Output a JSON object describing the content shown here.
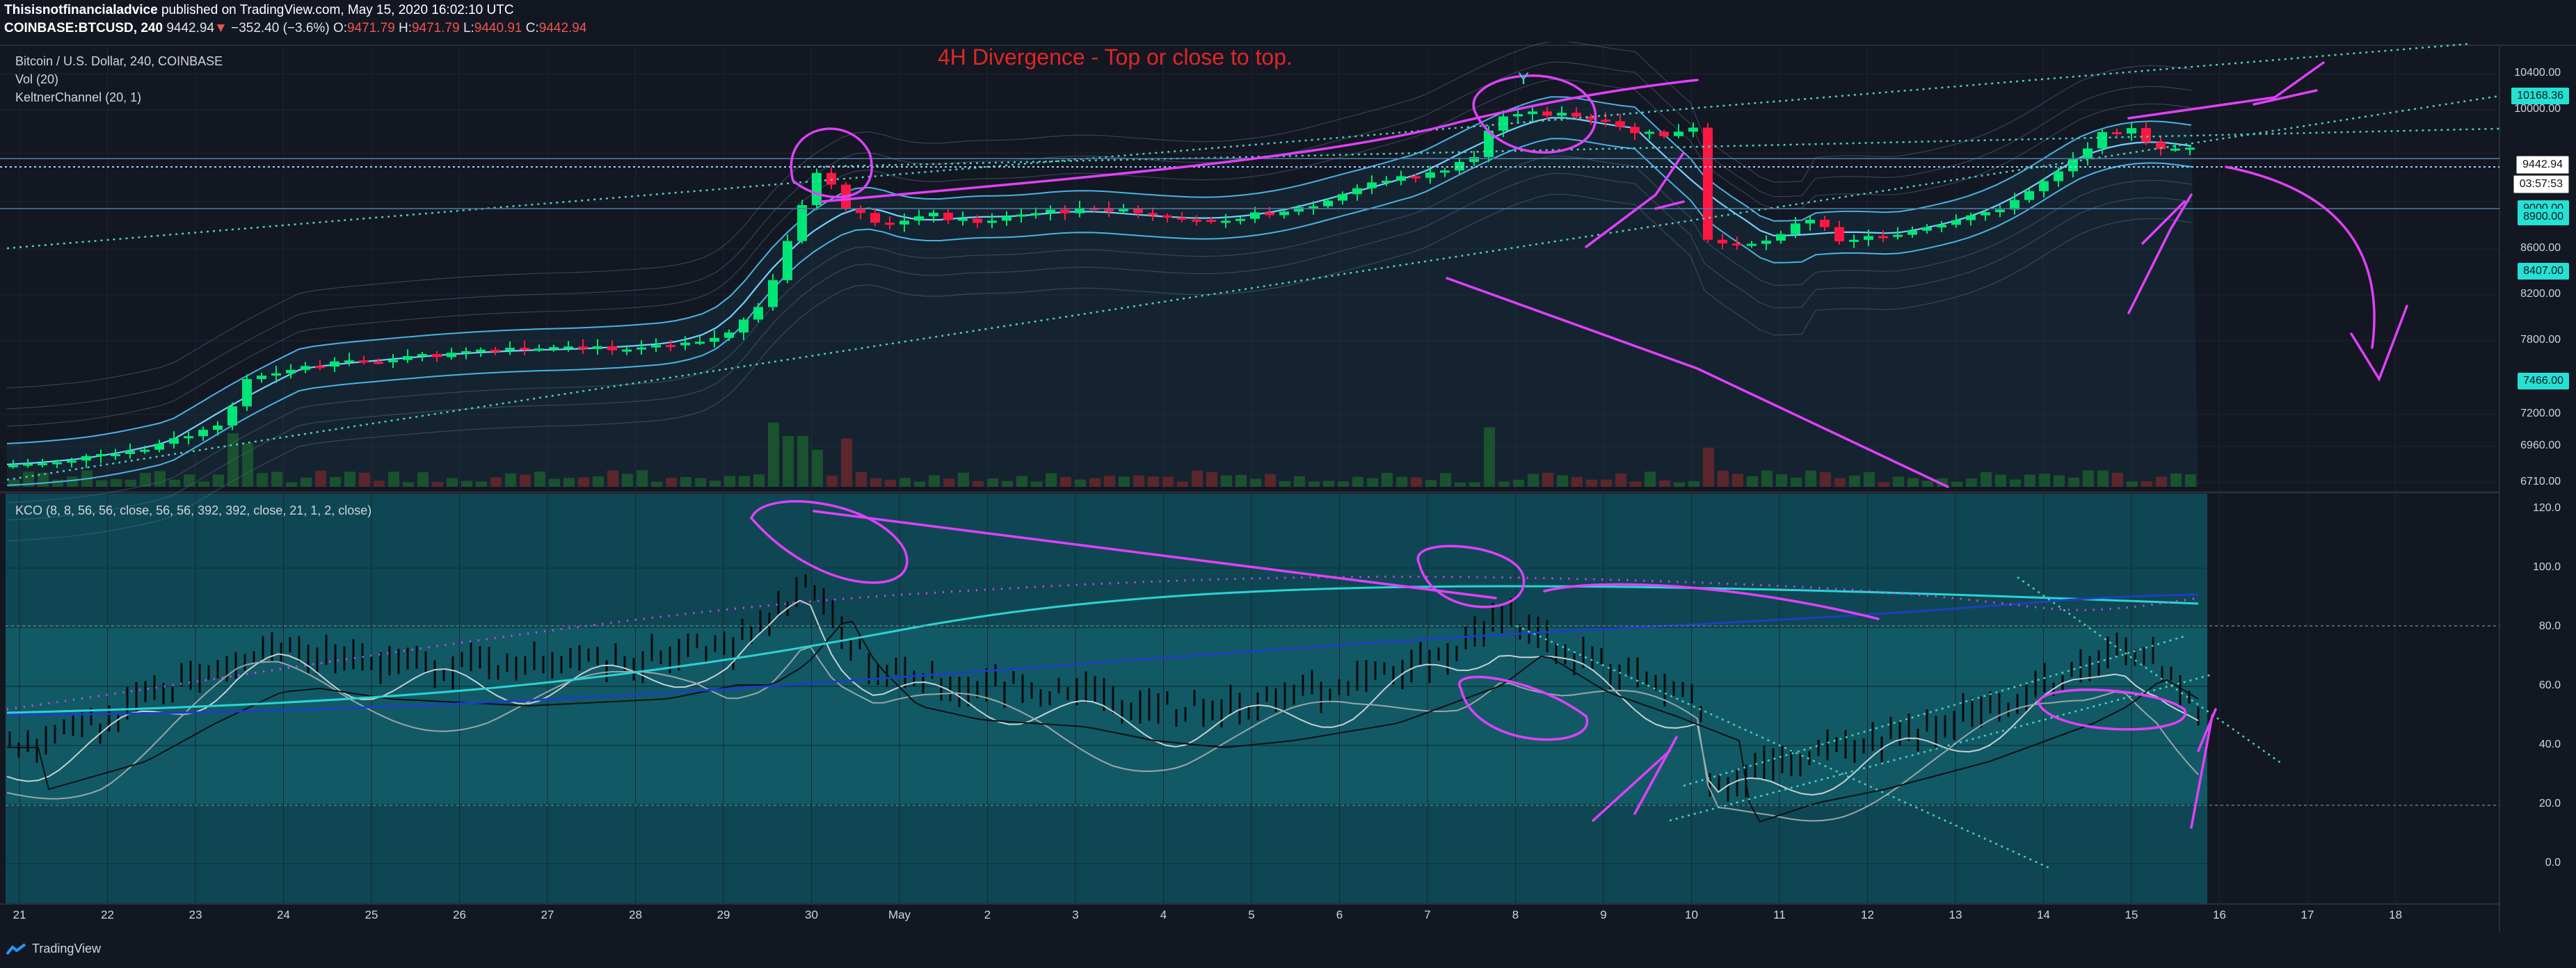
{
  "header": {
    "author": "Thisisnotfinancialadvice",
    "published": " published on TradingView.com, May 15, 2020 16:02:10 UTC",
    "symbol": "COINBASE:BTCUSD, 240",
    "last": "9442.94",
    "change": "−352.40 (−3.6%)",
    "o_label": "O:",
    "o": "9471.79",
    "h_label": "H:",
    "h": "9471.79",
    "l_label": "L:",
    "l": "9440.91",
    "c_label": "C:",
    "c": "9442.94"
  },
  "legend": {
    "title": "Bitcoin / U.S. Dollar, 240, COINBASE",
    "vol": "Vol (20)",
    "keltner": "KeltnerChannel (20, 1)",
    "kco": "KCO (8, 8, 56, 56, close, 56, 56, 392, 392, close, 21, 1, 2, close)"
  },
  "annotation": {
    "title": "4H Divergence - Top or close to top.",
    "marker": "Y"
  },
  "price_axis": {
    "ticks": [
      "10400.00",
      "10000.00",
      "8600.00",
      "8200.00",
      "7800.00",
      "7200.00",
      "6960.00",
      "6710.00"
    ],
    "labels": {
      "high": "10168.36",
      "current": "9442.94",
      "countdown": "03:57:53",
      "hidden": "9000.00",
      "mid": "8900.00",
      "low1": "8407.00",
      "low2": "7466.00"
    }
  },
  "osc_axis": {
    "ticks": [
      "120.0",
      "100.0",
      "80.0",
      "60.0",
      "40.0",
      "20.0",
      "0.0"
    ]
  },
  "time_axis": {
    "ticks": [
      "21",
      "22",
      "23",
      "24",
      "25",
      "26",
      "27",
      "28",
      "29",
      "30",
      "May",
      "2",
      "3",
      "4",
      "5",
      "6",
      "7",
      "8",
      "9",
      "10",
      "11",
      "12",
      "13",
      "14",
      "15",
      "16",
      "17",
      "18"
    ]
  },
  "footer": {
    "brand": "TradingView"
  },
  "colors": {
    "up": "#00e676",
    "down": "#ff1744",
    "vol_up": "#1b5e20",
    "vol_down": "#7f1d1d",
    "band": "#4fc3f7",
    "drawing": "#e040fb",
    "trend": "#4dd0c0"
  }
}
